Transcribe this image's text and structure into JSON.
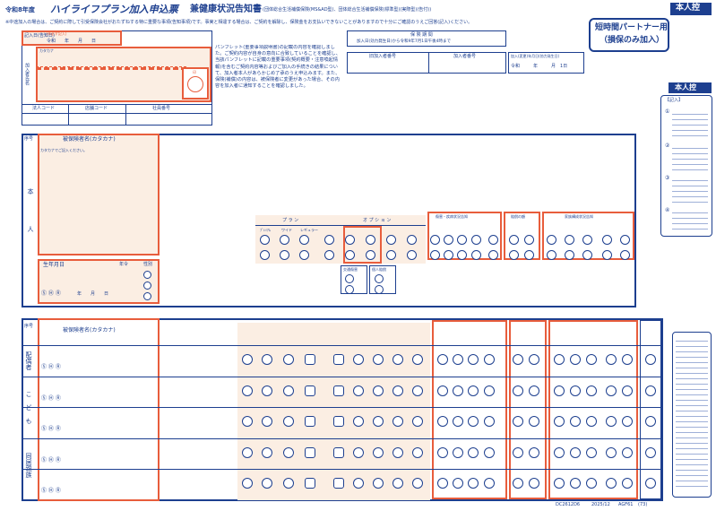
{
  "header": {
    "year": "令和8年度",
    "title_main": "ハイライフプラン加入申込票",
    "title_sub": "兼健康状況告知書",
    "note1": "(団体総合生活補償保険(MS&AD型)、団体総合生活補償保険(標準型)(実際型)(告付))",
    "note2": "※中途加入の場合は、ご契約に際して引受保険会社がおたずねする特に重要な事項(告知事項)です。事実と相違する場合は、ご契約を解除し、保険金をお支払いできないことがありますので十分にご確認のうえご回答(記入)ください。",
    "badge": "本人控",
    "box_title_l1": "短時間パートナー用",
    "box_title_l2": "（損保のみ加入）"
  },
  "top_form": {
    "entry_date_label": "記入日(告知日)",
    "entry_date_value": "令和　　年　　月　　日",
    "required_note": "(※必ず記入)",
    "kana_label": "カタカナ",
    "kanji_label": "加入者氏名",
    "seal_label": "印",
    "col1": "法人コード",
    "col2": "店舗コード",
    "col3": "社員番号",
    "notice_text": "パンフレット(重要事項説明書)の記載の内容を確認しました。ご契約内容が自身の意向に合致していることを確認し、当該パンフレットに記載の重要事項(契約概要・注意喚起情報)を含むご契約内容等およびご加入の手続きの結果について、加入者本人があらかじめ了承のうえ申込みます。また、保険(補償)の内容は、被保険者に変更があった場合、その内容を加入者に通知することを確認しました。"
  },
  "middle": {
    "notice_head": "保 険 期 間",
    "period_row1": "加入日(効力発生日)から令和9年7月1日午後4時まで",
    "id_label1": "旧加入者番号",
    "id_label2": "加入者番号",
    "start_label": "加入(変更)年月日(効力発生日)",
    "start_value": "令和　　　年　　　月　1日"
  },
  "sidebar": {
    "header": "【記入】",
    "items": [
      "①",
      "②",
      "③",
      "④"
    ],
    "text": "記入のしかた・お願い事項"
  },
  "person_section": {
    "num_label": "序号",
    "name_label": "被保険者名(カタカナ)",
    "kana_hint": "カタカナでご記入ください。",
    "side_label": "本　人",
    "birth_label": "生年月日",
    "birth_eras": "Ⓢ Ⓗ Ⓡ",
    "birth_ymd": "年　　月　　日",
    "age_label": "年令",
    "sex_label": "性別",
    "plan_header": "プ ラ ン",
    "option_header": "オ プ シ ョ ン",
    "plan_cols": [
      "ﾌﾟﾚﾐｱﾑ",
      "ワイド",
      "レギュラー"
    ],
    "opt_cols": [
      "天災",
      "入院",
      "通院",
      "手術",
      "賠償"
    ],
    "group_a": "傷害・疾病状況告知",
    "group_b": "賠償の額",
    "group_c": "家族構成状況告知",
    "yes_no": [
      "はい",
      "いいえ"
    ],
    "extra_labels": [
      "交通傷害",
      "個人賠償"
    ]
  },
  "family_section": {
    "num_label": "序号",
    "name_label": "被保険者名(カタカナ)",
    "side_labels": [
      "配偶者",
      "こども",
      "同居親族"
    ],
    "rows": [
      1,
      2,
      3,
      4,
      5
    ]
  },
  "footer": {
    "code1": "DC2612D6",
    "code2": "2025/12",
    "code3": "AGF61",
    "code4": "(73)"
  },
  "colors": {
    "blue": "#1d3f8f",
    "orange": "#e85d3c",
    "fill": "#fbeee3",
    "tan": "#f6e3cf",
    "lavender": "#d9dcef"
  }
}
